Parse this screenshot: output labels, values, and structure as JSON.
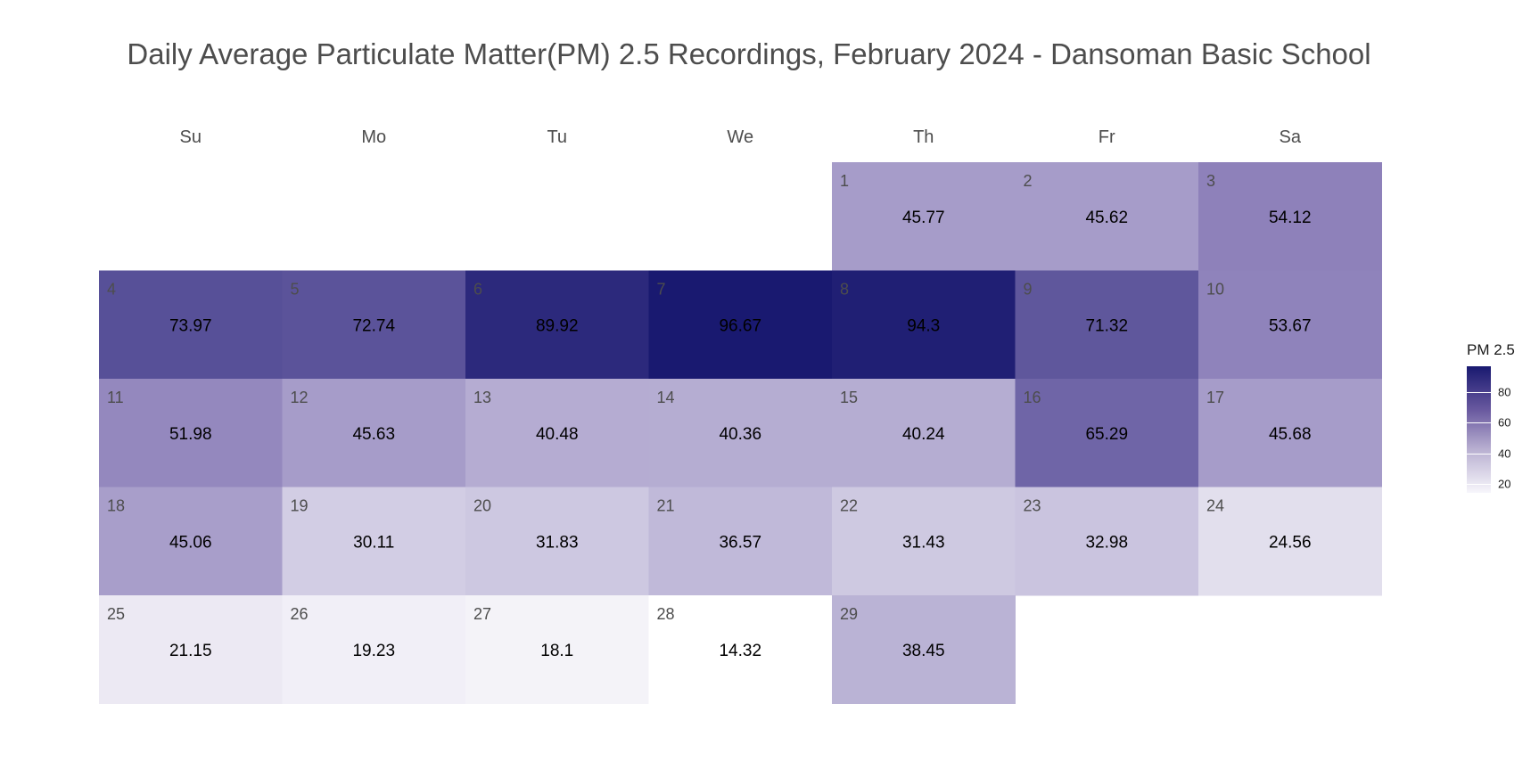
{
  "chart_data": {
    "type": "heatmap",
    "title": "Daily Average Particulate Matter(PM) 2.5 Recordings, February 2024 - Dansoman Basic School",
    "weekdays": [
      "Su",
      "Mo",
      "Tu",
      "We",
      "Th",
      "Fr",
      "Sa"
    ],
    "first_weekday_index": 4,
    "days": [
      1,
      2,
      3,
      4,
      5,
      6,
      7,
      8,
      9,
      10,
      11,
      12,
      13,
      14,
      15,
      16,
      17,
      18,
      19,
      20,
      21,
      22,
      23,
      24,
      25,
      26,
      27,
      28,
      29
    ],
    "values": [
      "45.77",
      "45.62",
      "54.12",
      "73.97",
      "72.74",
      "89.92",
      "96.67",
      "94.3",
      "71.32",
      "53.67",
      "51.98",
      "45.63",
      "40.48",
      "40.36",
      "40.24",
      "65.29",
      "45.68",
      "45.06",
      "30.11",
      "31.83",
      "36.57",
      "31.43",
      "32.98",
      "24.56",
      "21.15",
      "19.23",
      "18.1",
      "14.32",
      "38.45"
    ],
    "legend": {
      "title": "PM 2.5",
      "ticks": [
        "20",
        "40",
        "60",
        "80"
      ],
      "range": [
        14.32,
        96.67
      ]
    },
    "colors": {
      "low": "#ffffff",
      "mid": "#8a7db8",
      "high": "#191970"
    }
  }
}
